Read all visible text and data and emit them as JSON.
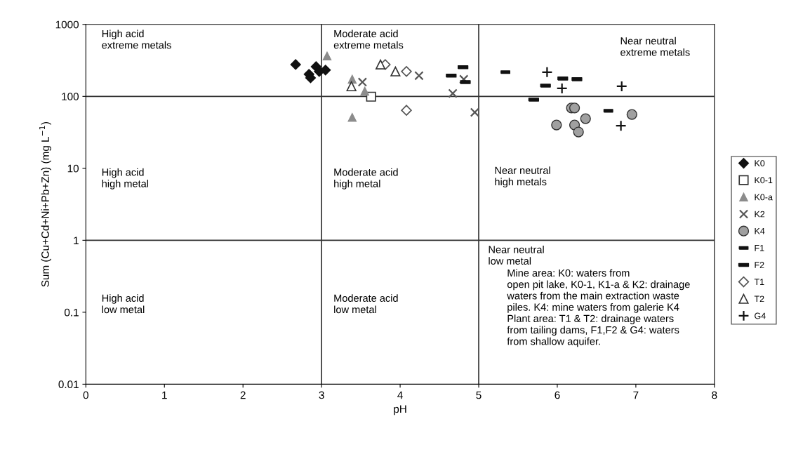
{
  "chart_data": {
    "type": "scatter",
    "xlabel": "pH",
    "ylabel": "Sum (Cu+Cd+Ni+Pb+Zn) (mg L$^{−1}$)",
    "xlim": [
      0,
      8
    ],
    "xticks": [
      0,
      1,
      2,
      3,
      4,
      5,
      6,
      7,
      8
    ],
    "ylim": [
      0.01,
      1000
    ],
    "yticks": [
      0.01,
      0.1,
      1,
      10,
      100,
      1000
    ],
    "log": "y",
    "grid": false,
    "legend": "right",
    "series": [
      {
        "name": "K0",
        "color": "#111111",
        "marker": "diamond",
        "x": [
          2.67,
          2.84,
          2.86,
          2.93,
          2.97,
          3.05
        ],
        "values": [
          277,
          203,
          181,
          259,
          222,
          232
        ]
      },
      {
        "name": "K0-1",
        "color": "#333333",
        "marker": "square",
        "x": [
          3.63
        ],
        "values": [
          99
        ]
      },
      {
        "name": "K0-a",
        "color": "#8c8c8c",
        "marker": "triangle",
        "x": [
          3.07,
          3.39,
          3.55,
          3.39
        ],
        "values": [
          364,
          173,
          118,
          51
        ]
      },
      {
        "name": "K2",
        "color": "#555555",
        "marker": "cross",
        "x": [
          3.52,
          4.24,
          4.67,
          4.81,
          4.95
        ],
        "values": [
          158,
          194,
          110,
          173,
          60
        ]
      },
      {
        "name": "K4",
        "color": "#a0a0a0",
        "marker": "circle",
        "x": [
          6.18,
          6.22,
          5.99,
          6.22,
          6.27,
          6.36,
          6.95
        ],
        "values": [
          69,
          69,
          40,
          40,
          32,
          49,
          56
        ]
      },
      {
        "name": "F1",
        "color": "#111111",
        "marker": "square",
        "x": [
          5.34,
          6.65
        ],
        "values": [
          217,
          63
        ]
      },
      {
        "name": "F2",
        "color": "#111111",
        "marker": "square",
        "x": [
          4.65,
          4.8,
          4.83,
          5.7,
          5.85,
          6.07,
          6.25
        ],
        "values": [
          194,
          254,
          158,
          90,
          141,
          177,
          173
        ]
      },
      {
        "name": "T1",
        "color": "#555555",
        "marker": "diamond",
        "x": [
          3.81,
          4.08,
          4.08
        ],
        "values": [
          277,
          222,
          64
        ]
      },
      {
        "name": "T2",
        "color": "#333333",
        "marker": "triangle",
        "x": [
          3.75,
          3.94,
          3.38
        ],
        "values": [
          277,
          222,
          138
        ]
      },
      {
        "name": "G4",
        "color": "#111111",
        "marker": "cross",
        "x": [
          5.87,
          6.06,
          6.82,
          6.81
        ],
        "values": [
          217,
          129,
          138,
          39
        ]
      }
    ],
    "ref_lines": [
      {
        "axis": "x",
        "value": 3,
        "color": "#333333"
      },
      {
        "axis": "x",
        "value": 5,
        "color": "#333333"
      },
      {
        "axis": "y",
        "value": 100,
        "color": "#333333"
      },
      {
        "axis": "y",
        "value": 1,
        "color": "#333333"
      }
    ],
    "annotations": [
      "High acid\nextreme metals",
      "Moderate acid\nextreme metals",
      "Near neutral\nextreme metals",
      "High acid\nhigh metal",
      "Moderate acid\nhigh metal",
      "Near neutral\nhigh metals",
      "Near neutral\nlow metal",
      "High acid\nlow metal",
      "Moderate acid\nlow metal",
      "Mine area: K0: waters from\nopen pit lake, K0-1, K1-a & K2: drainage\nwaters from the main extraction waste\npiles. K4: mine waters from galerie K4\nPlant area: T1 & T2: drainage waters\nfrom tailing dams, F1,F2 & G4: waters\nfrom shallow aquifer."
    ]
  }
}
